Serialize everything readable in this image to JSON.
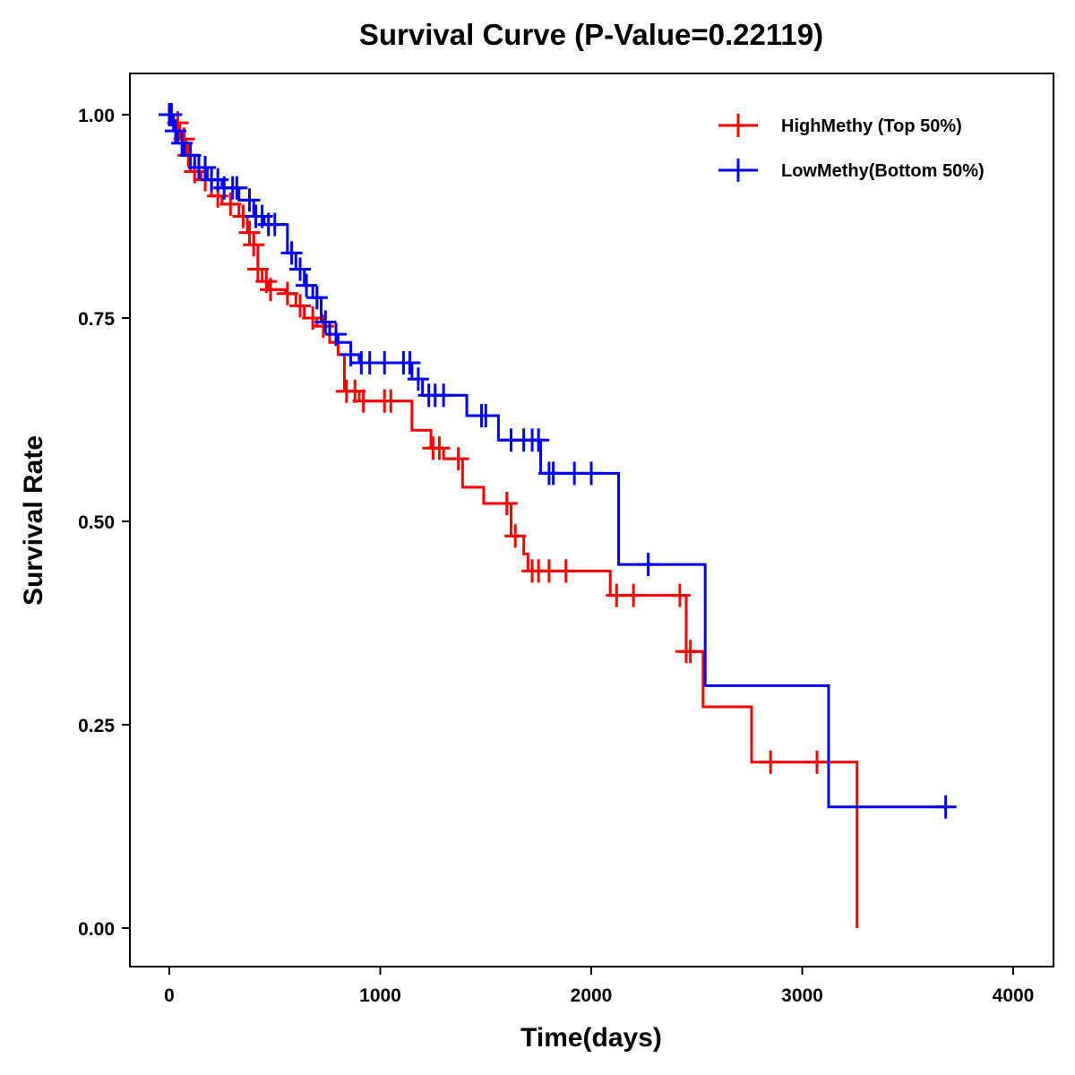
{
  "chart_data": {
    "type": "line",
    "subtype": "kaplan-meier",
    "title": "Survival Curve (P-Value=0.22119)",
    "xlabel": "Time(days)",
    "ylabel": "Survival Rate",
    "xlim": [
      -200,
      4200
    ],
    "ylim": [
      -0.05,
      1.05
    ],
    "xticks": [
      0,
      1000,
      2000,
      3000,
      4000
    ],
    "xtick_labels": [
      "0",
      "1000",
      "2000",
      "3000",
      "4000"
    ],
    "yticks": [
      0,
      0.25,
      0.5,
      0.75,
      1.0
    ],
    "ytick_labels": [
      "0.00",
      "0.25",
      "0.50",
      "0.75",
      "1.00"
    ],
    "grid": false,
    "legend_position": "top-right",
    "series": [
      {
        "name": "HighMethy (Top 50%)",
        "color": "#ff0000",
        "end_time": 3260,
        "steps": [
          [
            0,
            1
          ],
          [
            20,
            0.99
          ],
          [
            50,
            0.97
          ],
          [
            80,
            0.95
          ],
          [
            100,
            0.93
          ],
          [
            150,
            0.92
          ],
          [
            200,
            0.9
          ],
          [
            250,
            0.89
          ],
          [
            330,
            0.875
          ],
          [
            370,
            0.855
          ],
          [
            400,
            0.84
          ],
          [
            420,
            0.81
          ],
          [
            440,
            0.795
          ],
          [
            470,
            0.785
          ],
          [
            550,
            0.78
          ],
          [
            600,
            0.765
          ],
          [
            640,
            0.75
          ],
          [
            700,
            0.74
          ],
          [
            760,
            0.72
          ],
          [
            800,
            0.705
          ],
          [
            830,
            0.66
          ],
          [
            900,
            0.648
          ],
          [
            1150,
            0.612
          ],
          [
            1240,
            0.59
          ],
          [
            1300,
            0.577
          ],
          [
            1390,
            0.542
          ],
          [
            1490,
            0.522
          ],
          [
            1620,
            0.482
          ],
          [
            1680,
            0.46
          ],
          [
            1700,
            0.439
          ],
          [
            2090,
            0.409
          ],
          [
            2450,
            0.34
          ],
          [
            2530,
            0.272
          ],
          [
            2760,
            0.204
          ],
          [
            3260,
            0.0
          ]
        ],
        "censored": [
          40,
          70,
          90,
          120,
          170,
          230,
          290,
          350,
          380,
          400,
          420,
          460,
          480,
          560,
          620,
          680,
          730,
          840,
          880,
          920,
          1020,
          1050,
          1250,
          1280,
          1370,
          1600,
          1640,
          1720,
          1750,
          1800,
          1880,
          2120,
          2200,
          2420,
          2450,
          2470,
          2850,
          3070
        ]
      },
      {
        "name": "LowMethy(Bottom 50%)",
        "color": "#0000ff",
        "end_time": 3700,
        "steps": [
          [
            0,
            1
          ],
          [
            20,
            0.98
          ],
          [
            40,
            0.965
          ],
          [
            70,
            0.95
          ],
          [
            120,
            0.935
          ],
          [
            180,
            0.92
          ],
          [
            250,
            0.91
          ],
          [
            330,
            0.895
          ],
          [
            400,
            0.875
          ],
          [
            450,
            0.865
          ],
          [
            560,
            0.83
          ],
          [
            600,
            0.81
          ],
          [
            640,
            0.79
          ],
          [
            680,
            0.775
          ],
          [
            720,
            0.745
          ],
          [
            760,
            0.73
          ],
          [
            800,
            0.72
          ],
          [
            860,
            0.705
          ],
          [
            900,
            0.695
          ],
          [
            1150,
            0.675
          ],
          [
            1200,
            0.655
          ],
          [
            1410,
            0.63
          ],
          [
            1560,
            0.6
          ],
          [
            1760,
            0.559
          ],
          [
            2130,
            0.447
          ],
          [
            2540,
            0.298
          ],
          [
            3125,
            0.149
          ]
        ],
        "censored": [
          0,
          10,
          30,
          60,
          100,
          140,
          170,
          200,
          230,
          260,
          300,
          320,
          380,
          410,
          440,
          470,
          500,
          580,
          620,
          650,
          700,
          740,
          790,
          860,
          910,
          950,
          1020,
          1110,
          1140,
          1180,
          1230,
          1260,
          1300,
          1480,
          1500,
          1620,
          1680,
          1720,
          1750,
          1800,
          1820,
          1920,
          2000,
          2270,
          3680
        ]
      }
    ]
  }
}
